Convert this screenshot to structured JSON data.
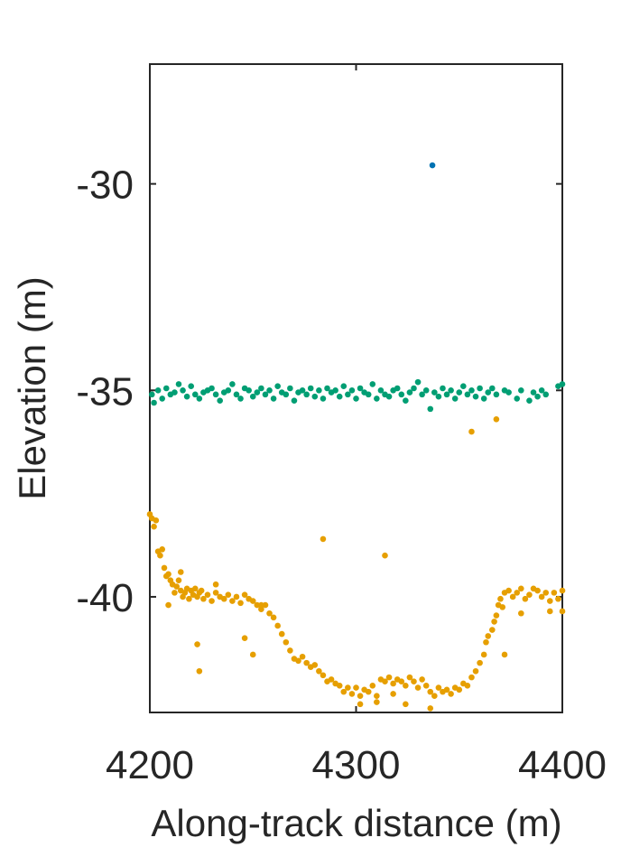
{
  "chart_data": {
    "type": "scatter",
    "title": "",
    "xlabel": "Along-track distance (m)",
    "ylabel": "Elevation (m)",
    "xlim": [
      4200,
      4400
    ],
    "ylim": [
      -42.8,
      -27.1
    ],
    "xticks": [
      4200,
      4300,
      4400
    ],
    "xtick_labels": [
      "4200",
      "4300",
      "4400"
    ],
    "yticks": [
      -30,
      -35,
      -40
    ],
    "ytick_labels": [
      "-30",
      "-35",
      "-40"
    ],
    "grid": false,
    "series": [
      {
        "color": "#0072b2",
        "points": [
          [
            4337,
            -29.55
          ]
        ]
      },
      {
        "color": "#009e73",
        "points": [
          [
            4201,
            -35.1
          ],
          [
            4202,
            -35.3
          ],
          [
            4204,
            -35.0
          ],
          [
            4206,
            -35.2
          ],
          [
            4208,
            -34.95
          ],
          [
            4210,
            -35.1
          ],
          [
            4212,
            -35.05
          ],
          [
            4214,
            -34.85
          ],
          [
            4216,
            -35.0
          ],
          [
            4218,
            -35.15
          ],
          [
            4220,
            -34.9
          ],
          [
            4222,
            -35.1
          ],
          [
            4224,
            -35.2
          ],
          [
            4226,
            -35.05
          ],
          [
            4228,
            -35.0
          ],
          [
            4230,
            -34.95
          ],
          [
            4232,
            -35.1
          ],
          [
            4234,
            -35.25
          ],
          [
            4236,
            -35.05
          ],
          [
            4238,
            -35.0
          ],
          [
            4240,
            -34.85
          ],
          [
            4242,
            -35.1
          ],
          [
            4244,
            -35.2
          ],
          [
            4246,
            -34.95
          ],
          [
            4248,
            -35.0
          ],
          [
            4250,
            -35.15
          ],
          [
            4252,
            -35.05
          ],
          [
            4254,
            -34.95
          ],
          [
            4256,
            -35.1
          ],
          [
            4258,
            -35.0
          ],
          [
            4260,
            -35.2
          ],
          [
            4262,
            -34.9
          ],
          [
            4264,
            -35.05
          ],
          [
            4266,
            -35.1
          ],
          [
            4268,
            -34.95
          ],
          [
            4270,
            -35.25
          ],
          [
            4272,
            -35.05
          ],
          [
            4274,
            -35.0
          ],
          [
            4276,
            -35.1
          ],
          [
            4278,
            -34.95
          ],
          [
            4280,
            -35.15
          ],
          [
            4282,
            -35.0
          ],
          [
            4284,
            -35.2
          ],
          [
            4286,
            -34.95
          ],
          [
            4288,
            -35.05
          ],
          [
            4290,
            -35.0
          ],
          [
            4292,
            -35.15
          ],
          [
            4294,
            -34.9
          ],
          [
            4296,
            -35.1
          ],
          [
            4298,
            -35.0
          ],
          [
            4300,
            -35.2
          ],
          [
            4302,
            -34.95
          ],
          [
            4304,
            -35.05
          ],
          [
            4306,
            -35.1
          ],
          [
            4308,
            -34.85
          ],
          [
            4310,
            -35.2
          ],
          [
            4312,
            -35.0
          ],
          [
            4314,
            -35.1
          ],
          [
            4316,
            -35.15
          ],
          [
            4318,
            -35.0
          ],
          [
            4320,
            -34.95
          ],
          [
            4322,
            -35.1
          ],
          [
            4324,
            -35.25
          ],
          [
            4326,
            -35.05
          ],
          [
            4328,
            -34.95
          ],
          [
            4330,
            -34.8
          ],
          [
            4332,
            -35.1
          ],
          [
            4334,
            -35.0
          ],
          [
            4336,
            -35.45
          ],
          [
            4338,
            -35.05
          ],
          [
            4340,
            -35.15
          ],
          [
            4342,
            -34.95
          ],
          [
            4344,
            -35.1
          ],
          [
            4346,
            -35.0
          ],
          [
            4348,
            -35.2
          ],
          [
            4350,
            -35.05
          ],
          [
            4352,
            -34.9
          ],
          [
            4354,
            -35.1
          ],
          [
            4356,
            -35.0
          ],
          [
            4358,
            -35.15
          ],
          [
            4360,
            -34.95
          ],
          [
            4362,
            -35.2
          ],
          [
            4364,
            -35.05
          ],
          [
            4366,
            -34.95
          ],
          [
            4368,
            -35.1
          ],
          [
            4372,
            -35.0
          ],
          [
            4374,
            -35.05
          ],
          [
            4378,
            -35.2
          ],
          [
            4380,
            -35.0
          ],
          [
            4384,
            -35.25
          ],
          [
            4386,
            -35.05
          ],
          [
            4388,
            -35.15
          ],
          [
            4390,
            -35.0
          ],
          [
            4392,
            -35.1
          ],
          [
            4398,
            -34.9
          ],
          [
            4400,
            -34.85
          ]
        ]
      },
      {
        "color": "#e69f00",
        "points": [
          [
            4200,
            -38.0
          ],
          [
            4201,
            -38.1
          ],
          [
            4202,
            -38.3
          ],
          [
            4203,
            -38.15
          ],
          [
            4204,
            -38.9
          ],
          [
            4205,
            -39.0
          ],
          [
            4206,
            -38.85
          ],
          [
            4207,
            -39.3
          ],
          [
            4208,
            -39.5
          ],
          [
            4209,
            -39.45
          ],
          [
            4210,
            -39.6
          ],
          [
            4211,
            -39.7
          ],
          [
            4212,
            -39.9
          ],
          [
            4213,
            -39.75
          ],
          [
            4214,
            -39.6
          ],
          [
            4215,
            -39.85
          ],
          [
            4216,
            -40.0
          ],
          [
            4217,
            -39.9
          ],
          [
            4218,
            -39.8
          ],
          [
            4219,
            -40.05
          ],
          [
            4220,
            -39.85
          ],
          [
            4221,
            -39.95
          ],
          [
            4222,
            -39.8
          ],
          [
            4223,
            -40.0
          ],
          [
            4224,
            -39.9
          ],
          [
            4225,
            -39.85
          ],
          [
            4226,
            -40.05
          ],
          [
            4228,
            -39.95
          ],
          [
            4230,
            -40.1
          ],
          [
            4232,
            -39.9
          ],
          [
            4234,
            -40.0
          ],
          [
            4236,
            -40.05
          ],
          [
            4238,
            -39.95
          ],
          [
            4240,
            -40.1
          ],
          [
            4242,
            -40.0
          ],
          [
            4244,
            -40.15
          ],
          [
            4246,
            -39.95
          ],
          [
            4248,
            -40.05
          ],
          [
            4250,
            -40.1
          ],
          [
            4252,
            -40.2
          ],
          [
            4254,
            -40.3
          ],
          [
            4256,
            -40.2
          ],
          [
            4258,
            -40.4
          ],
          [
            4260,
            -40.5
          ],
          [
            4262,
            -40.7
          ],
          [
            4264,
            -40.9
          ],
          [
            4266,
            -41.1
          ],
          [
            4268,
            -41.3
          ],
          [
            4270,
            -41.5
          ],
          [
            4272,
            -41.55
          ],
          [
            4274,
            -41.45
          ],
          [
            4276,
            -41.6
          ],
          [
            4278,
            -41.7
          ],
          [
            4280,
            -41.65
          ],
          [
            4282,
            -41.8
          ],
          [
            4284,
            -41.9
          ],
          [
            4286,
            -42.05
          ],
          [
            4288,
            -42.0
          ],
          [
            4290,
            -42.1
          ],
          [
            4292,
            -42.15
          ],
          [
            4294,
            -42.3
          ],
          [
            4296,
            -42.2
          ],
          [
            4298,
            -42.35
          ],
          [
            4300,
            -42.2
          ],
          [
            4302,
            -42.4
          ],
          [
            4304,
            -42.25
          ],
          [
            4306,
            -42.3
          ],
          [
            4308,
            -42.15
          ],
          [
            4310,
            -42.4
          ],
          [
            4312,
            -42.0
          ],
          [
            4314,
            -42.05
          ],
          [
            4316,
            -41.95
          ],
          [
            4318,
            -42.1
          ],
          [
            4320,
            -42.0
          ],
          [
            4322,
            -42.05
          ],
          [
            4324,
            -42.15
          ],
          [
            4326,
            -41.95
          ],
          [
            4328,
            -42.05
          ],
          [
            4330,
            -42.2
          ],
          [
            4332,
            -42.0
          ],
          [
            4334,
            -42.15
          ],
          [
            4336,
            -42.3
          ],
          [
            4338,
            -42.4
          ],
          [
            4340,
            -42.2
          ],
          [
            4342,
            -42.3
          ],
          [
            4344,
            -42.25
          ],
          [
            4346,
            -42.35
          ],
          [
            4348,
            -42.2
          ],
          [
            4350,
            -42.25
          ],
          [
            4352,
            -42.1
          ],
          [
            4354,
            -42.15
          ],
          [
            4356,
            -41.95
          ],
          [
            4358,
            -41.8
          ],
          [
            4360,
            -41.6
          ],
          [
            4362,
            -41.4
          ],
          [
            4363,
            -41.1
          ],
          [
            4364,
            -40.95
          ],
          [
            4366,
            -40.8
          ],
          [
            4367,
            -40.6
          ],
          [
            4368,
            -40.45
          ],
          [
            4369,
            -40.2
          ],
          [
            4370,
            -40.05
          ],
          [
            4371,
            -40.25
          ],
          [
            4372,
            -39.9
          ],
          [
            4374,
            -39.85
          ],
          [
            4376,
            -40.0
          ],
          [
            4378,
            -39.9
          ],
          [
            4380,
            -39.8
          ],
          [
            4382,
            -40.05
          ],
          [
            4384,
            -39.95
          ],
          [
            4386,
            -39.8
          ],
          [
            4388,
            -39.85
          ],
          [
            4390,
            -40.0
          ],
          [
            4392,
            -39.9
          ],
          [
            4394,
            -40.1
          ],
          [
            4396,
            -39.9
          ],
          [
            4398,
            -40.05
          ],
          [
            4400,
            -39.85
          ],
          [
            4209,
            -40.2
          ],
          [
            4215,
            -39.4
          ],
          [
            4223,
            -41.15
          ],
          [
            4224,
            -41.8
          ],
          [
            4232,
            -39.7
          ],
          [
            4246,
            -41.0
          ],
          [
            4250,
            -41.4
          ],
          [
            4254,
            -40.2
          ],
          [
            4284,
            -38.6
          ],
          [
            4314,
            -39.0
          ],
          [
            4302,
            -42.6
          ],
          [
            4310,
            -42.55
          ],
          [
            4318,
            -42.35
          ],
          [
            4324,
            -42.6
          ],
          [
            4336,
            -42.7
          ],
          [
            4356,
            -36.0
          ],
          [
            4368,
            -35.7
          ],
          [
            4372,
            -41.4
          ],
          [
            4380,
            -40.4
          ],
          [
            4394,
            -40.35
          ],
          [
            4400,
            -40.35
          ]
        ]
      }
    ]
  }
}
